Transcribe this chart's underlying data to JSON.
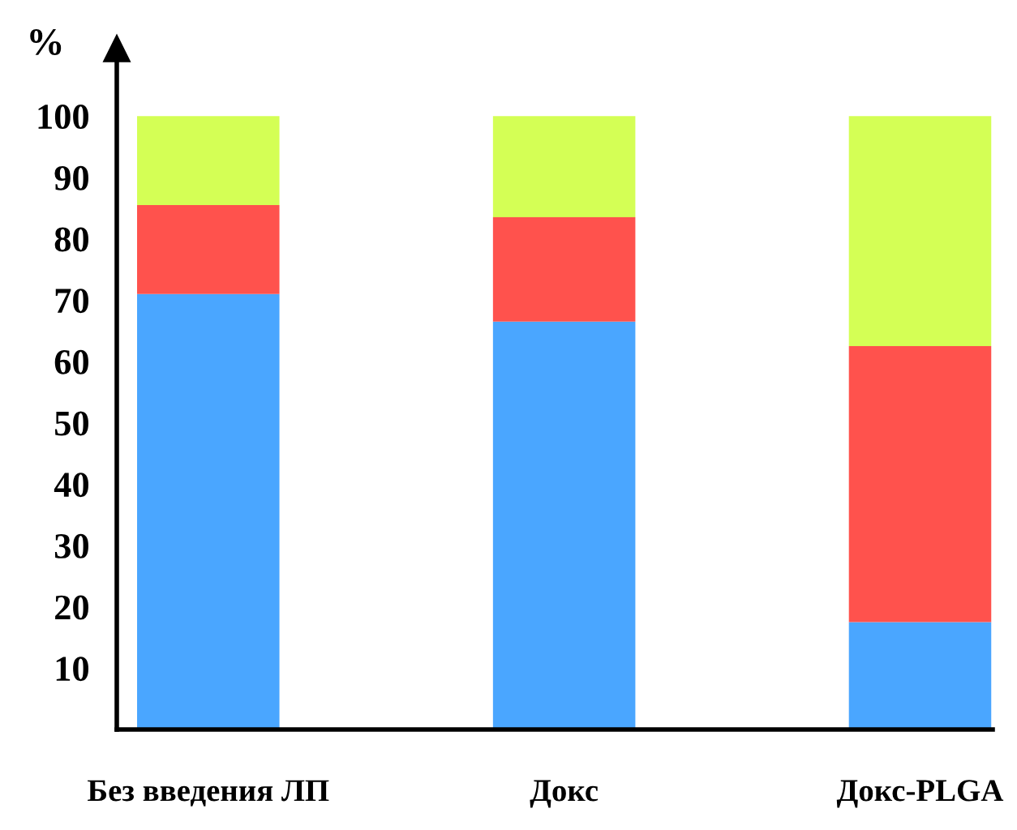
{
  "chart_data": {
    "type": "bar",
    "stacked": true,
    "ylabel": "%",
    "categories": [
      "Без введения ЛП",
      "Докс",
      "Докс-PLGA"
    ],
    "series": [
      {
        "color": "#4aa6ff",
        "values": [
          71,
          66.5,
          17.5
        ]
      },
      {
        "color": "#ff524d",
        "values": [
          14.5,
          17,
          45
        ]
      },
      {
        "color": "#d4ff55",
        "values": [
          14.5,
          16.5,
          37.5
        ]
      }
    ],
    "ylim": [
      0,
      111
    ],
    "yticks": [
      10,
      20,
      30,
      40,
      50,
      60,
      70,
      80,
      90,
      100
    ],
    "grid": false,
    "legend": false
  }
}
